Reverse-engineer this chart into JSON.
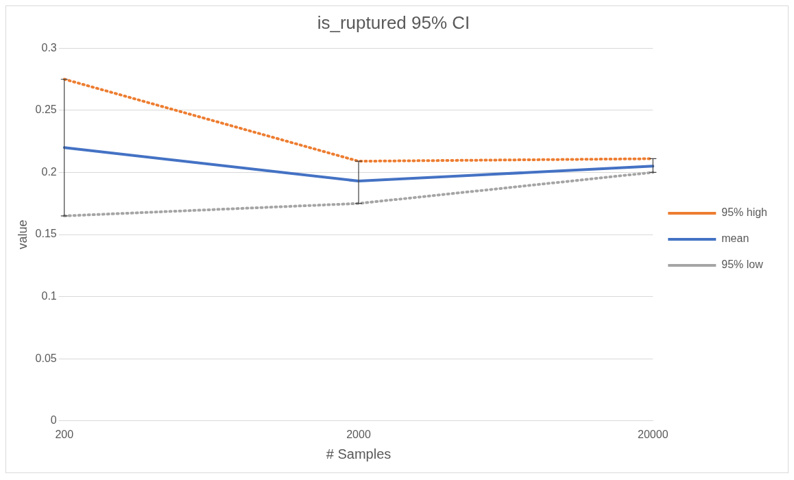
{
  "chart_data": {
    "type": "line",
    "title": "is_ruptured 95% CI",
    "xlabel": "# Samples",
    "ylabel": "value",
    "categories": [
      "200",
      "2000",
      "20000"
    ],
    "series": [
      {
        "name": "95% high",
        "color": "#ed7d31",
        "values": [
          0.275,
          0.209,
          0.211
        ],
        "line_style": "dotted"
      },
      {
        "name": "mean",
        "color": "#4472c4",
        "values": [
          0.22,
          0.193,
          0.205
        ],
        "line_style": "solid",
        "errors": [
          [
            0.165,
            0.275
          ],
          [
            0.175,
            0.209
          ],
          [
            0.2,
            0.211
          ]
        ]
      },
      {
        "name": "95% low",
        "color": "#a5a5a5",
        "values": [
          0.165,
          0.175,
          0.2
        ],
        "line_style": "dotted"
      }
    ],
    "ylim": [
      0,
      0.3
    ],
    "yticks": [
      0,
      0.05,
      0.1,
      0.15,
      0.2,
      0.25,
      0.3
    ],
    "grid": "y",
    "legend": "right",
    "marker": "none"
  }
}
